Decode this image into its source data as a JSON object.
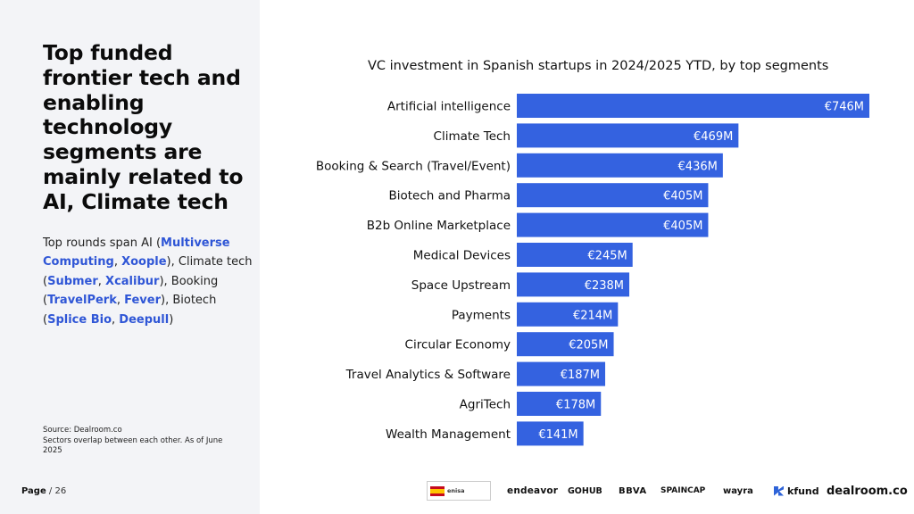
{
  "page": {
    "headline": "Top funded frontier tech and enabling technology segments are mainly related to AI, Climate tech",
    "body_segments": [
      {
        "text": "Top rounds span AI (",
        "company": false
      },
      {
        "text": "Multiverse Computing",
        "company": true
      },
      {
        "text": ", ",
        "company": false
      },
      {
        "text": "Xoople",
        "company": true
      },
      {
        "text": "), Climate tech (",
        "company": false
      },
      {
        "text": "Submer",
        "company": true
      },
      {
        "text": ",  ",
        "company": false
      },
      {
        "text": "Xcalibur",
        "company": true
      },
      {
        "text": "), Booking (",
        "company": false
      },
      {
        "text": "TravelPerk",
        "company": true
      },
      {
        "text": ", ",
        "company": false
      },
      {
        "text": "Fever",
        "company": true
      },
      {
        "text": "), Biotech (",
        "company": false
      },
      {
        "text": "Splice Bio",
        "company": true
      },
      {
        "text": ", ",
        "company": false
      },
      {
        "text": "Deepull",
        "company": true
      },
      {
        "text": ")",
        "company": false
      }
    ],
    "source_line1": "Source:  Dealroom.co",
    "source_line2": "Sectors overlap between each other. As of June 2025",
    "page_label": "Page",
    "page_number": " / 26",
    "company_link_color": "#2f56d6",
    "left_panel_bg": "#f3f4f7"
  },
  "logos": {
    "spain": "enisa",
    "endeavor": "endeavor",
    "gohub": "GOHUB",
    "bbva": "BBVA",
    "spaincap": "SPAINCAP",
    "wayra": "wayra",
    "kfund": "kfund",
    "dealroom": "dealroom.co"
  },
  "chart_data": {
    "type": "bar",
    "orientation": "horizontal",
    "title": "VC investment in Spanish startups in 2024/2025 YTD, by top segments",
    "categories": [
      "Artificial intelligence",
      "Climate Tech",
      "Booking & Search (Travel/Event)",
      "Biotech and Pharma",
      "B2b Online Marketplace",
      "Medical Devices",
      "Space Upstream",
      "Payments",
      "Circular Economy",
      "Travel Analytics & Software",
      "AgriTech",
      "Wealth Management"
    ],
    "values": [
      746,
      469,
      436,
      405,
      405,
      245,
      238,
      214,
      205,
      187,
      178,
      141
    ],
    "value_labels": [
      "€746M",
      "€469M",
      "€436M",
      "€405M",
      "€405M",
      "€245M",
      "€238M",
      "€214M",
      "€205M",
      "€187M",
      "€178M",
      "€141M"
    ],
    "unit": "€M",
    "xlim": [
      0,
      746
    ],
    "bar_color": "#3462e0",
    "label_color": "#ffffff",
    "grid": false,
    "legend": "none"
  }
}
